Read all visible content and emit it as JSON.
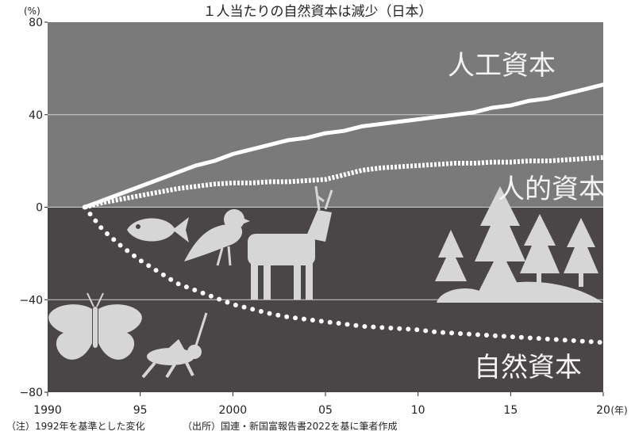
{
  "chart_data": {
    "type": "line",
    "title": "１人当たりの自然資本は減少（日本）",
    "ylabel": "(%)",
    "xlabel": "(年)",
    "xlim": [
      1990,
      2020
    ],
    "ylim": [
      -80,
      80
    ],
    "x_ticks": [
      1990,
      1995,
      2000,
      2005,
      2010,
      2015,
      2020
    ],
    "x_tick_labels": [
      "1990",
      "95",
      "2000",
      "05",
      "10",
      "15",
      "20"
    ],
    "y_ticks": [
      80,
      40,
      0,
      -40,
      -80
    ],
    "y_tick_labels": [
      "80",
      "40",
      "0",
      "−40",
      "−80"
    ],
    "grid": true,
    "x": [
      1992,
      1993,
      1994,
      1995,
      1996,
      1997,
      1998,
      1999,
      2000,
      2001,
      2002,
      2003,
      2004,
      2005,
      2006,
      2007,
      2008,
      2009,
      2010,
      2011,
      2012,
      2013,
      2014,
      2015,
      2016,
      2017,
      2018,
      2019,
      2020
    ],
    "series": [
      {
        "name": "人工資本",
        "style": "solid",
        "color": "#ffffff",
        "values": [
          0,
          3,
          6,
          9,
          12,
          15,
          18,
          20,
          23,
          25,
          27,
          29,
          30,
          32,
          33,
          35,
          36,
          37,
          38,
          39,
          40,
          41,
          43,
          44,
          46,
          47,
          49,
          51,
          53
        ]
      },
      {
        "name": "人的資本",
        "style": "dashed",
        "color": "#ffffff",
        "values": [
          0,
          2,
          3.5,
          5,
          6.5,
          8,
          9,
          10,
          10.5,
          10.5,
          11,
          11,
          11.5,
          12,
          14,
          16,
          17,
          17.5,
          18,
          18.5,
          19,
          19,
          19.5,
          19.5,
          20,
          20,
          20.5,
          21,
          21.5
        ]
      },
      {
        "name": "自然資本",
        "style": "dotted",
        "color": "#ffffff",
        "values": [
          0,
          -10,
          -17,
          -23,
          -28,
          -33,
          -36,
          -39,
          -42,
          -44,
          -46,
          -47.5,
          -48.5,
          -49.5,
          -50.5,
          -51.5,
          -52,
          -52.5,
          -53,
          -54,
          -54.5,
          -55,
          -55.5,
          -56,
          -56.5,
          -57,
          -57.5,
          -58,
          -58.5
        ]
      }
    ]
  },
  "notes": {
    "left": "（注）1992年を基準とした変化",
    "right": "（出所）国連・新国富報告書2022を基に筆者作成"
  },
  "colors": {
    "positive_area": "#7a7a7a",
    "negative_area": "#4a4546",
    "gridline": "#d0d0d0",
    "line": "#ffffff",
    "silhouette": "#d6d6d6"
  },
  "icons": [
    "butterfly-icon",
    "grasshopper-icon",
    "fish-icon",
    "bird-icon",
    "deer-icon",
    "forest-icon"
  ]
}
